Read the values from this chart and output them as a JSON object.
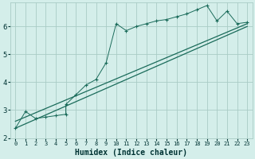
{
  "xlabel": "Humidex (Indice chaleur)",
  "bg_color": "#d4eeea",
  "grid_color": "#aaccc6",
  "line_color": "#1a6b5a",
  "xlim": [
    -0.5,
    23.5
  ],
  "ylim": [
    2.0,
    6.85
  ],
  "xticks": [
    0,
    1,
    2,
    3,
    4,
    5,
    6,
    7,
    8,
    9,
    10,
    11,
    12,
    13,
    14,
    15,
    16,
    17,
    18,
    19,
    20,
    21,
    22,
    23
  ],
  "yticks": [
    2,
    3,
    4,
    5,
    6
  ],
  "line1_x": [
    0,
    1,
    2,
    3,
    4,
    5,
    5,
    6,
    7,
    8,
    9,
    10,
    11,
    12,
    13,
    14,
    15,
    16,
    17,
    18,
    19,
    20,
    21,
    22,
    23
  ],
  "line1_y": [
    2.35,
    2.95,
    2.7,
    2.75,
    2.8,
    2.85,
    3.2,
    3.55,
    3.9,
    4.1,
    4.7,
    6.1,
    5.85,
    6.0,
    6.1,
    6.2,
    6.25,
    6.35,
    6.45,
    6.6,
    6.75,
    6.2,
    6.55,
    6.1,
    6.15
  ],
  "line2_x": [
    0,
    23
  ],
  "line2_y": [
    2.6,
    6.1
  ],
  "line3_x": [
    0,
    23
  ],
  "line3_y": [
    2.35,
    6.0
  ],
  "figsize": [
    3.2,
    2.0
  ],
  "dpi": 100
}
